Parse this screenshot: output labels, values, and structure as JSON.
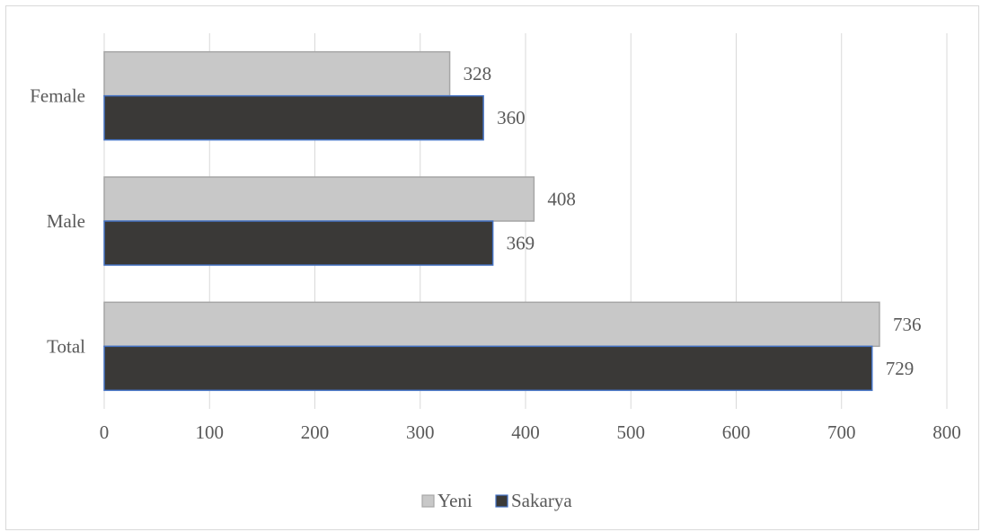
{
  "chart_data": {
    "type": "bar",
    "orientation": "horizontal",
    "categories": [
      "Female",
      "Male",
      "Total"
    ],
    "series": [
      {
        "name": "Yeni",
        "values": [
          328,
          408,
          736
        ]
      },
      {
        "name": "Sakarya",
        "values": [
          360,
          369,
          729
        ]
      }
    ],
    "xlim": [
      0,
      800
    ],
    "x_ticks": [
      0,
      100,
      200,
      300,
      400,
      500,
      600,
      700,
      800
    ],
    "grid": "vertical",
    "legend": "bottom",
    "title": "",
    "xlabel": "",
    "ylabel": "",
    "colors": {
      "Yeni": "#c8c8c8",
      "Sakarya": "#3a3937",
      "Yeni_edge": "#a6a6a6",
      "Sakarya_edge": "#4472c4",
      "grid": "#d9d9d9",
      "text": "#595959"
    }
  }
}
